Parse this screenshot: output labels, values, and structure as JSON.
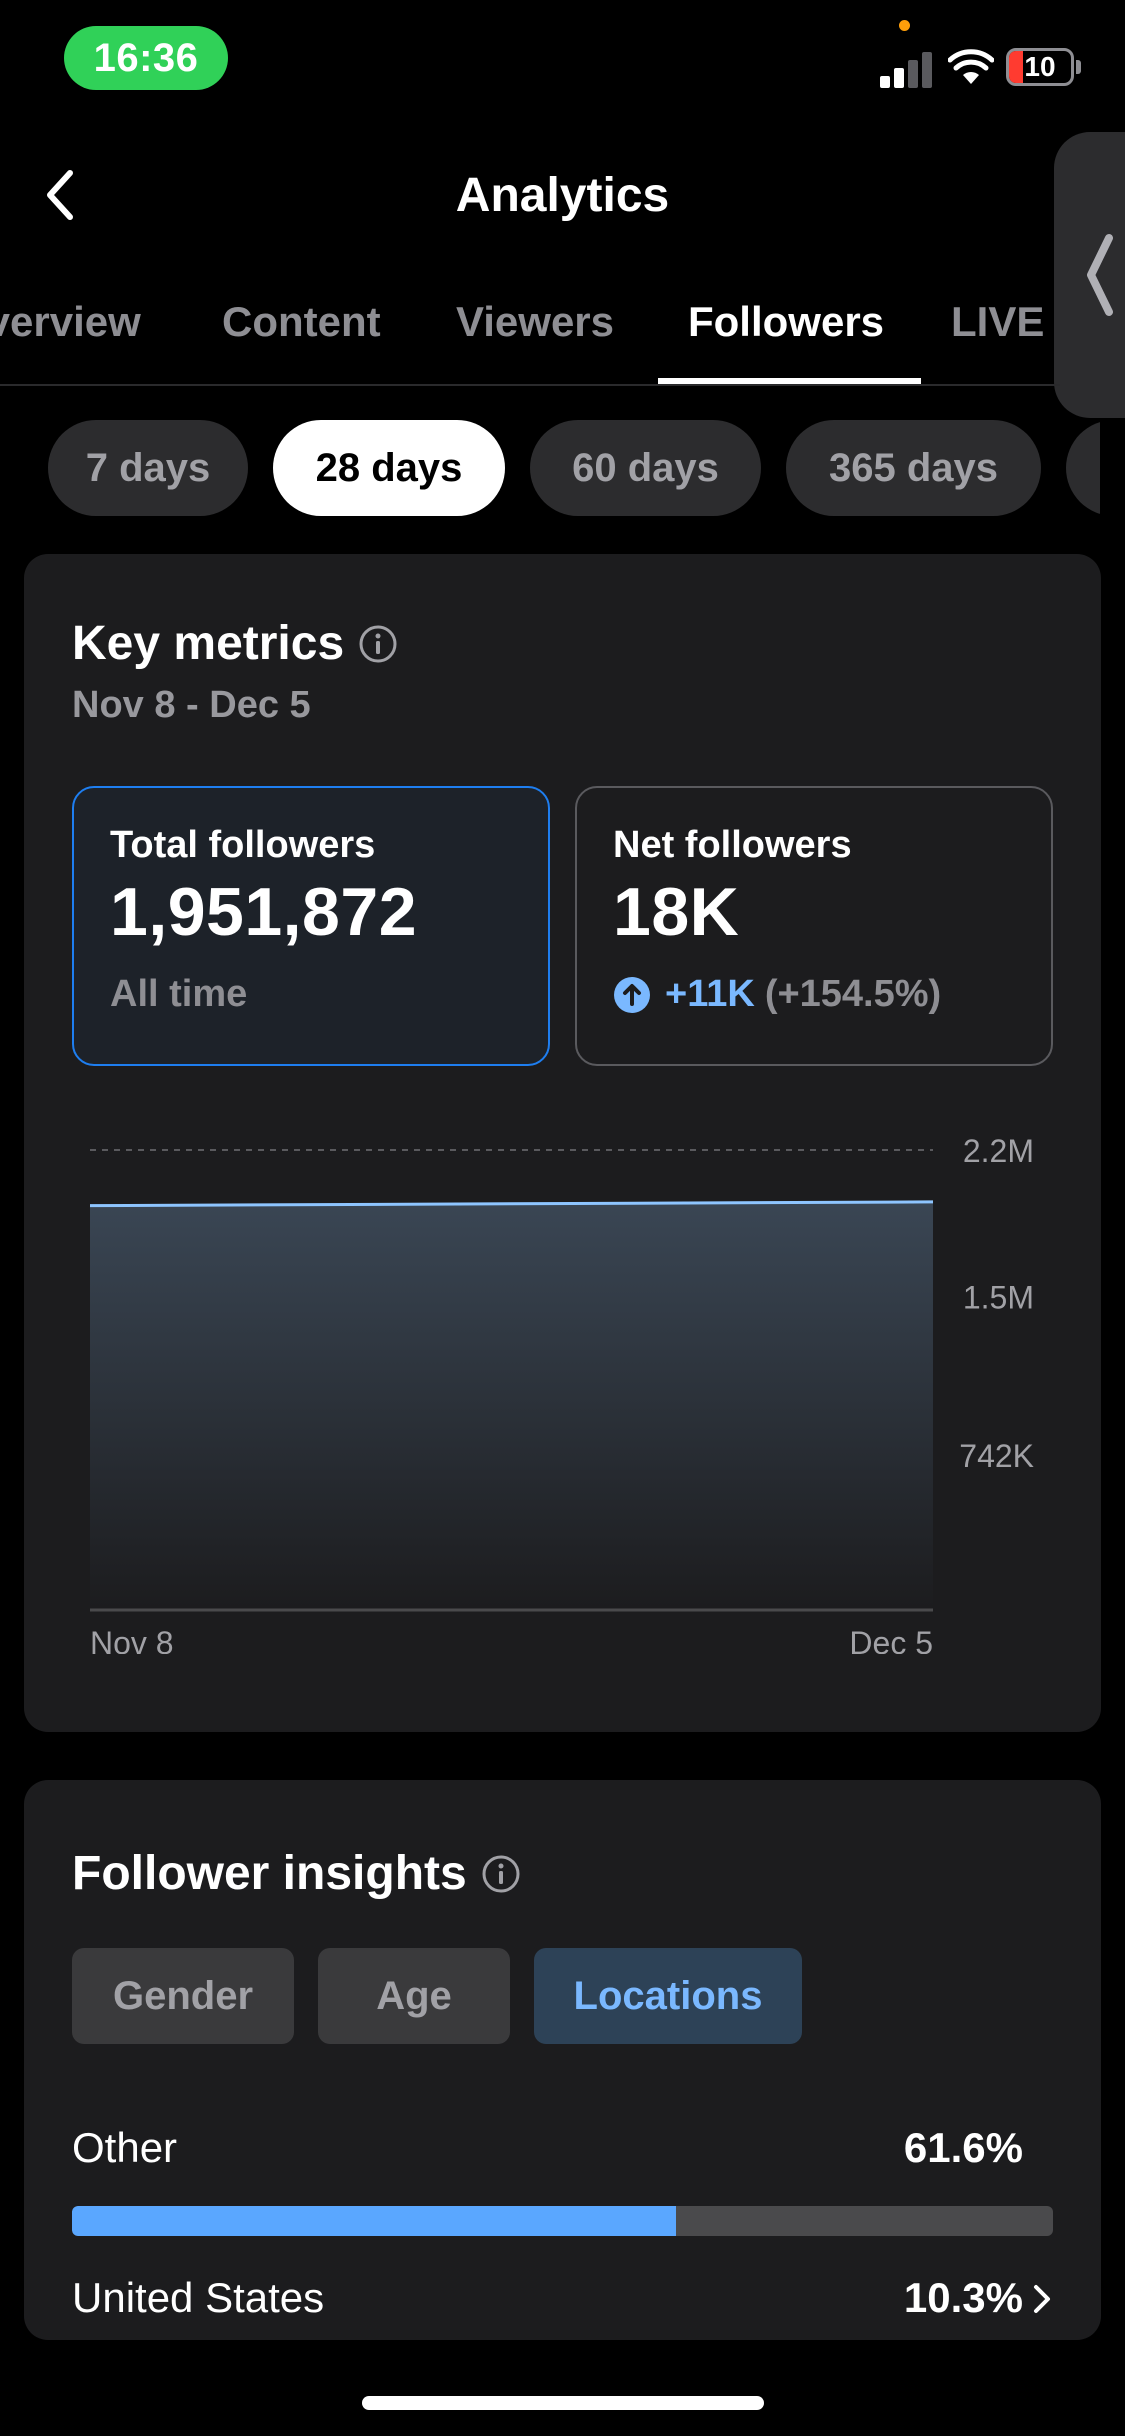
{
  "status_bar": {
    "time": "16:36",
    "battery": "10"
  },
  "header": {
    "title": "Analytics"
  },
  "tabs": [
    {
      "label": "Overview"
    },
    {
      "label": "Content"
    },
    {
      "label": "Viewers"
    },
    {
      "label": "Followers"
    },
    {
      "label": "LIVE"
    }
  ],
  "periods": [
    {
      "label": "7 days"
    },
    {
      "label": "28 days"
    },
    {
      "label": "60 days"
    },
    {
      "label": "365 days"
    }
  ],
  "key_metrics": {
    "title": "Key metrics",
    "date_range": "Nov 8 - Dec 5",
    "total_followers": {
      "label": "Total followers",
      "value": "1,951,872",
      "note": "All time"
    },
    "net_followers": {
      "label": "Net followers",
      "value": "18K",
      "change": "+11K",
      "change_pct": "(+154.5%)"
    }
  },
  "chart_data": {
    "type": "area",
    "x": [
      "Nov 8",
      "Dec 5"
    ],
    "xtick_labels": [
      "Nov 8",
      "Dec 5"
    ],
    "series": [
      {
        "values": [
          1933872,
          1951872
        ]
      }
    ],
    "ytick_labels": [
      "2.2M",
      "1.5M",
      "742K"
    ],
    "yticks": [
      2200000,
      1500000,
      742000
    ],
    "ylim": [
      0,
      2200000
    ],
    "grid": true,
    "colors": {
      "line": "#8ec5ff"
    }
  },
  "follower_insights": {
    "title": "Follower insights",
    "segments": [
      {
        "label": "Gender"
      },
      {
        "label": "Age"
      },
      {
        "label": "Locations"
      }
    ],
    "locations": [
      {
        "name": "Other",
        "value": "61.6%",
        "fraction": 0.616
      },
      {
        "name": "United States",
        "value": "10.3%",
        "fraction": 0.103
      }
    ]
  }
}
